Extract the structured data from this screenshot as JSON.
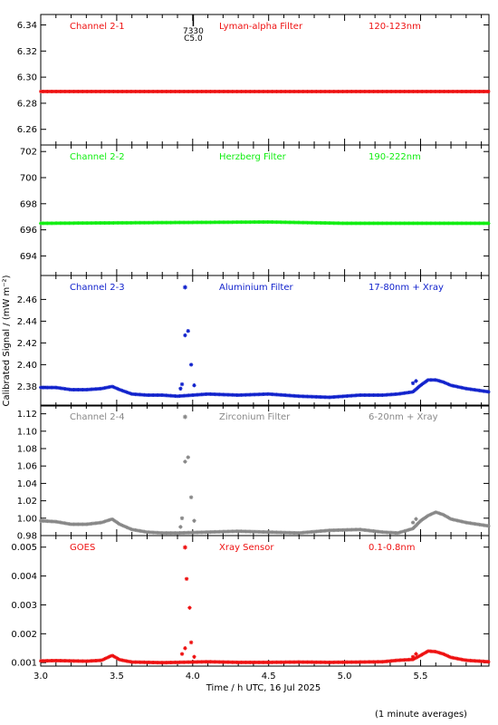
{
  "chart_data": {
    "type": "scatter",
    "xlabel": "Time / h UTC, 16 Jul 2025",
    "ylabel": "Calibrated Signal / (mW m⁻²)",
    "footnote": "(1 minute averages)",
    "xlim": [
      3.0,
      5.95
    ],
    "xticks": [
      "3.0",
      "3.5",
      "4.0",
      "4.5",
      "5.0",
      "5.5"
    ],
    "marker": "7330",
    "marker_sub": "C5.0",
    "marker_x": 3.98,
    "panels": [
      {
        "channel": "Channel 2-1",
        "filter": "Lyman-alpha Filter",
        "range": "120-123nm",
        "color": "#ee1111",
        "ylim": [
          6.248,
          6.348
        ],
        "yticks": [
          "6.26",
          "6.28",
          "6.30",
          "6.32",
          "6.34"
        ],
        "flare_star": false,
        "x": [
          3.0,
          5.95
        ],
        "y": [
          6.289,
          6.289
        ],
        "spikes": []
      },
      {
        "channel": "Channel 2-2",
        "filter": "Herzberg Filter",
        "range": "190-222nm",
        "color": "#11ee11",
        "ylim": [
          692.5,
          702.5
        ],
        "yticks": [
          "694",
          "696",
          "698",
          "700",
          "702"
        ],
        "flare_star": false,
        "x": [
          3.0,
          4.5,
          5.0,
          5.95
        ],
        "y": [
          696.5,
          696.6,
          696.5,
          696.5
        ],
        "spikes": []
      },
      {
        "channel": "Channel 2-3",
        "filter": "Aluminium Filter",
        "range": "17-80nm + Xray",
        "color": "#1122cc",
        "ylim": [
          2.362,
          2.482
        ],
        "yticks": [
          "2.38",
          "2.40",
          "2.42",
          "2.44",
          "2.46"
        ],
        "flare_star": true,
        "x": [
          3.0,
          3.1,
          3.2,
          3.3,
          3.4,
          3.47,
          3.52,
          3.6,
          3.7,
          3.8,
          3.9,
          4.1,
          4.3,
          4.5,
          4.7,
          4.9,
          5.1,
          5.25,
          5.35,
          5.45,
          5.5,
          5.55,
          5.6,
          5.65,
          5.7,
          5.8,
          5.95
        ],
        "y": [
          2.379,
          2.379,
          2.377,
          2.377,
          2.378,
          2.38,
          2.377,
          2.373,
          2.372,
          2.372,
          2.371,
          2.373,
          2.372,
          2.373,
          2.371,
          2.37,
          2.372,
          2.372,
          2.373,
          2.375,
          2.381,
          2.386,
          2.386,
          2.384,
          2.381,
          2.378,
          2.375
        ],
        "spikes": [
          [
            3.92,
            2.378
          ],
          [
            3.93,
            2.382
          ],
          [
            3.95,
            2.427
          ],
          [
            3.97,
            2.431
          ],
          [
            3.99,
            2.4
          ],
          [
            4.01,
            2.381
          ],
          [
            5.45,
            2.383
          ],
          [
            5.47,
            2.385
          ]
        ]
      },
      {
        "channel": "Channel 2-4",
        "filter": "Zirconium Filter",
        "range": "6-20nm + Xray",
        "color": "#888888",
        "ylim": [
          0.98,
          1.13
        ],
        "yticks": [
          "0.98",
          "1.00",
          "1.02",
          "1.04",
          "1.06",
          "1.08",
          "1.10",
          "1.12"
        ],
        "flare_star": true,
        "x": [
          3.0,
          3.1,
          3.2,
          3.3,
          3.4,
          3.47,
          3.52,
          3.6,
          3.7,
          3.8,
          3.9,
          4.1,
          4.3,
          4.5,
          4.7,
          4.9,
          5.1,
          5.25,
          5.35,
          5.45,
          5.5,
          5.55,
          5.6,
          5.65,
          5.7,
          5.8,
          5.95
        ],
        "y": [
          0.997,
          0.996,
          0.993,
          0.993,
          0.995,
          0.999,
          0.993,
          0.987,
          0.984,
          0.983,
          0.983,
          0.984,
          0.985,
          0.984,
          0.983,
          0.986,
          0.987,
          0.984,
          0.983,
          0.988,
          0.997,
          1.003,
          1.007,
          1.004,
          0.999,
          0.995,
          0.991
        ],
        "spikes": [
          [
            3.92,
            0.99
          ],
          [
            3.93,
            1.0
          ],
          [
            3.95,
            1.065
          ],
          [
            3.97,
            1.07
          ],
          [
            3.99,
            1.024
          ],
          [
            4.01,
            0.997
          ],
          [
            5.45,
            0.995
          ],
          [
            5.47,
            0.999
          ]
        ]
      },
      {
        "channel": "GOES",
        "filter": "Xray Sensor",
        "range": "0.1-0.8nm",
        "color": "#ee1111",
        "ylim": [
          0.00088,
          0.0054
        ],
        "yticks": [
          "0.001",
          "0.002",
          "0.003",
          "0.004",
          "0.005"
        ],
        "flare_star": true,
        "x": [
          3.0,
          3.1,
          3.2,
          3.3,
          3.4,
          3.47,
          3.52,
          3.6,
          3.7,
          3.8,
          3.9,
          4.1,
          4.3,
          4.5,
          4.7,
          4.9,
          5.1,
          5.25,
          5.35,
          5.45,
          5.5,
          5.55,
          5.6,
          5.65,
          5.7,
          5.8,
          5.95
        ],
        "y": [
          0.00106,
          0.00107,
          0.00106,
          0.00105,
          0.00108,
          0.00125,
          0.0011,
          0.00102,
          0.00101,
          0.001,
          0.00101,
          0.00103,
          0.00101,
          0.00101,
          0.00102,
          0.00101,
          0.00102,
          0.00103,
          0.00108,
          0.00111,
          0.00125,
          0.0014,
          0.00138,
          0.0013,
          0.00118,
          0.00108,
          0.00103
        ],
        "spikes": [
          [
            3.93,
            0.0013
          ],
          [
            3.95,
            0.0015
          ],
          [
            3.96,
            0.0039
          ],
          [
            3.98,
            0.0029
          ],
          [
            3.99,
            0.0017
          ],
          [
            4.01,
            0.0012
          ],
          [
            5.45,
            0.0012
          ],
          [
            5.47,
            0.0013
          ]
        ]
      }
    ]
  }
}
